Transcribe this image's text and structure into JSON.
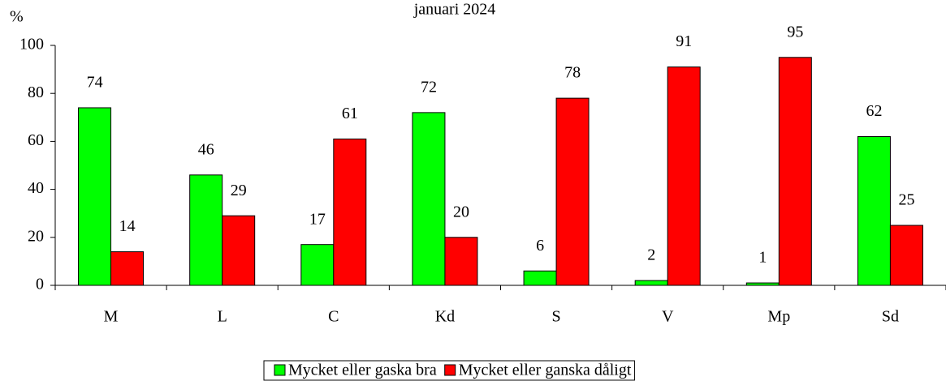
{
  "chart_data": {
    "type": "bar",
    "title": "januari 2024",
    "y_label": "%",
    "categories": [
      "M",
      "L",
      "C",
      "Kd",
      "S",
      "V",
      "Mp",
      "Sd"
    ],
    "series": [
      {
        "name": "Mycket eller gaska bra",
        "color": "#00ff00",
        "values": [
          74,
          46,
          17,
          72,
          6,
          2,
          1,
          62
        ]
      },
      {
        "name": "Mycket eller ganska dåligt",
        "color": "#ff0000",
        "values": [
          14,
          29,
          61,
          20,
          78,
          91,
          95,
          25
        ]
      }
    ],
    "ylim": [
      0,
      100
    ],
    "yticks": [
      0,
      20,
      40,
      60,
      80,
      100
    ],
    "legend": "bottom"
  }
}
